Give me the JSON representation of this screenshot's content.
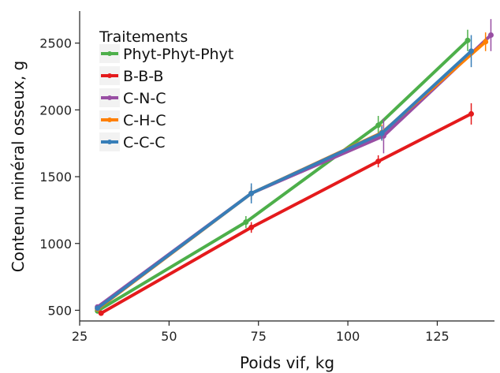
{
  "chart_data": {
    "type": "line",
    "xlabel": "Poids vif, kg",
    "ylabel": "Contenu minéral osseux, g",
    "xlim": [
      25,
      141
    ],
    "ylim": [
      420,
      2740
    ],
    "xticks": [
      25,
      50,
      75,
      100,
      125
    ],
    "yticks": [
      500,
      1000,
      1500,
      2000,
      2500
    ],
    "grid": false,
    "legend": {
      "title": "Traitements",
      "position": "top-left"
    },
    "series": [
      {
        "name": "Phyt-Phyt-Phyt",
        "color": "#4daf4a",
        "points": [
          {
            "x": 30,
            "y": 495,
            "err": 20
          },
          {
            "x": 71.5,
            "y": 1160,
            "err": 45
          },
          {
            "x": 108.5,
            "y": 1885,
            "err": 70
          },
          {
            "x": 133.5,
            "y": 2520,
            "err": 80
          }
        ]
      },
      {
        "name": "B-B-B",
        "color": "#e41a1c",
        "points": [
          {
            "x": 31,
            "y": 478,
            "err": 15
          },
          {
            "x": 73,
            "y": 1120,
            "err": 40
          },
          {
            "x": 108.5,
            "y": 1615,
            "err": 45
          },
          {
            "x": 134.5,
            "y": 1970,
            "err": 80
          }
        ]
      },
      {
        "name": "C-N-C",
        "color": "#984ea3",
        "points": [
          {
            "x": 30,
            "y": 525,
            "err": 15
          },
          {
            "x": 73,
            "y": 1375,
            "err": 50
          },
          {
            "x": 110,
            "y": 1805,
            "err": 130
          },
          {
            "x": 140,
            "y": 2560,
            "err": 120
          }
        ]
      },
      {
        "name": "C-H-C",
        "color": "#ff7f00",
        "points": [
          {
            "x": 30,
            "y": 510,
            "err": 15
          },
          {
            "x": 73,
            "y": 1375,
            "err": 50
          },
          {
            "x": 109.5,
            "y": 1830,
            "err": 60
          },
          {
            "x": 138.5,
            "y": 2510,
            "err": 70
          }
        ]
      },
      {
        "name": "C-C-C",
        "color": "#377eb8",
        "points": [
          {
            "x": 30,
            "y": 515,
            "err": 15
          },
          {
            "x": 73,
            "y": 1375,
            "err": 75
          },
          {
            "x": 109.5,
            "y": 1825,
            "err": 55
          },
          {
            "x": 134.5,
            "y": 2440,
            "err": 120
          }
        ]
      }
    ]
  }
}
